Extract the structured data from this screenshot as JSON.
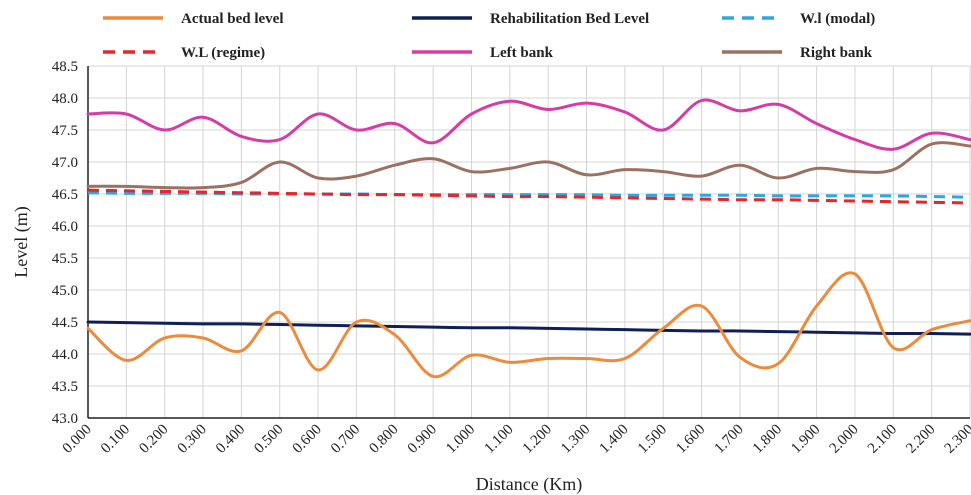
{
  "chart_data": {
    "type": "line",
    "title": "",
    "xlabel": "Distance (Km)",
    "ylabel": "Level (m)",
    "ylim": [
      43.0,
      48.5
    ],
    "xlim": [
      0.0,
      2.3
    ],
    "grid": true,
    "legend_position": "top",
    "x_tick_labels": [
      "0.000",
      "0.100",
      "0.200",
      "0.300",
      "0.400",
      "0.500",
      "0.600",
      "0.700",
      "0.800",
      "0.900",
      "1.000",
      "1.100",
      "1.200",
      "1.300",
      "1.400",
      "1.500",
      "1.600",
      "1.700",
      "1.800",
      "1.900",
      "2.000",
      "2.100",
      "2.200",
      "2.300"
    ],
    "y_tick_labels": [
      "43.0",
      "43.5",
      "44.0",
      "44.5",
      "45.0",
      "45.5",
      "46.0",
      "46.5",
      "47.0",
      "47.5",
      "48.0",
      "48.5"
    ],
    "x": [
      0.0,
      0.1,
      0.2,
      0.3,
      0.4,
      0.5,
      0.6,
      0.7,
      0.8,
      0.9,
      1.0,
      1.1,
      1.2,
      1.3,
      1.4,
      1.5,
      1.6,
      1.7,
      1.8,
      1.9,
      2.0,
      2.1,
      2.2,
      2.3
    ],
    "series": [
      {
        "name": "Actual bed level",
        "color": "#ED8B3D",
        "dash": "solid",
        "values": [
          44.4,
          43.9,
          44.25,
          44.25,
          44.05,
          44.65,
          43.75,
          44.5,
          44.3,
          43.65,
          43.98,
          43.87,
          43.93,
          43.93,
          43.93,
          44.4,
          44.75,
          43.95,
          43.85,
          44.75,
          45.25,
          44.1,
          44.38,
          44.52
        ]
      },
      {
        "name": "Rehabilitation Bed Level",
        "color": "#0F1F5C",
        "dash": "solid",
        "values": [
          44.5,
          44.49,
          44.48,
          44.47,
          44.47,
          44.46,
          44.45,
          44.44,
          44.43,
          44.42,
          44.41,
          44.41,
          44.4,
          44.39,
          44.38,
          44.37,
          44.36,
          44.36,
          44.35,
          44.34,
          44.33,
          44.32,
          44.32,
          44.31
        ]
      },
      {
        "name": "W.l (modal)",
        "color": "#2BA8E0",
        "dash": "dashed",
        "values": [
          46.52,
          46.51,
          46.51,
          46.51,
          46.5,
          46.5,
          46.5,
          46.5,
          46.49,
          46.49,
          46.49,
          46.49,
          46.49,
          46.49,
          46.48,
          46.48,
          46.48,
          46.48,
          46.47,
          46.47,
          46.47,
          46.47,
          46.46,
          46.45
        ]
      },
      {
        "name": "W.L  (regime)",
        "color": "#E8252A",
        "dash": "dashed",
        "values": [
          46.56,
          46.55,
          46.54,
          46.53,
          46.52,
          46.51,
          46.5,
          46.49,
          46.49,
          46.48,
          46.47,
          46.46,
          46.46,
          46.45,
          46.44,
          46.43,
          46.42,
          46.41,
          46.41,
          46.4,
          46.39,
          46.38,
          46.37,
          46.36
        ]
      },
      {
        "name": "Left bank",
        "color": "#D63CA6",
        "dash": "solid",
        "values": [
          47.75,
          47.75,
          47.5,
          47.7,
          47.4,
          47.35,
          47.75,
          47.5,
          47.6,
          47.3,
          47.75,
          47.95,
          47.82,
          47.92,
          47.78,
          47.5,
          47.96,
          47.8,
          47.9,
          47.6,
          47.35,
          47.2,
          47.45,
          47.35
        ]
      },
      {
        "name": "Right bank",
        "color": "#9B7262",
        "dash": "solid",
        "values": [
          46.62,
          46.62,
          46.6,
          46.6,
          46.68,
          47.0,
          46.75,
          46.78,
          46.95,
          47.05,
          46.85,
          46.9,
          47.0,
          46.8,
          46.88,
          46.85,
          46.78,
          46.95,
          46.75,
          46.9,
          46.85,
          46.88,
          47.28,
          47.25
        ]
      }
    ]
  }
}
